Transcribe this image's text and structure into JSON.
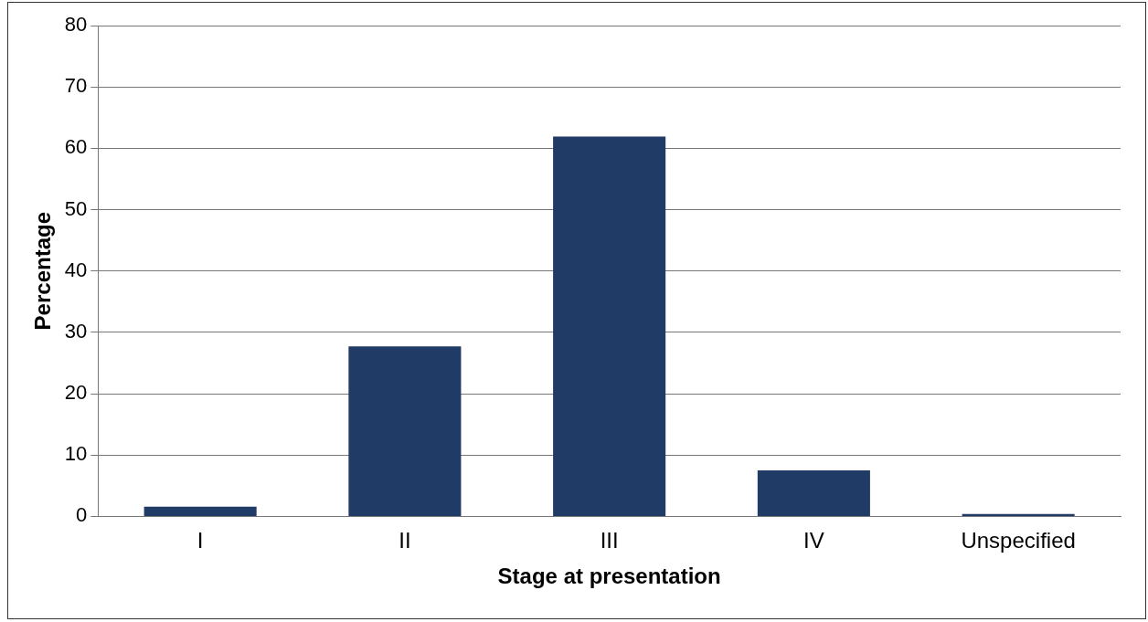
{
  "chart_data": {
    "type": "bar",
    "xlabel": "Stage at presentation",
    "ylabel": "Percentage",
    "categories": [
      "I",
      "II",
      "III",
      "IV",
      "Unspecified"
    ],
    "values": [
      1.6,
      27.7,
      61.9,
      7.5,
      0.4
    ],
    "color": "#1f3b66",
    "ylim": [
      0,
      80
    ],
    "yticks": [
      0,
      10,
      20,
      30,
      40,
      50,
      60,
      70,
      80
    ],
    "grid": "y",
    "legend": false
  }
}
